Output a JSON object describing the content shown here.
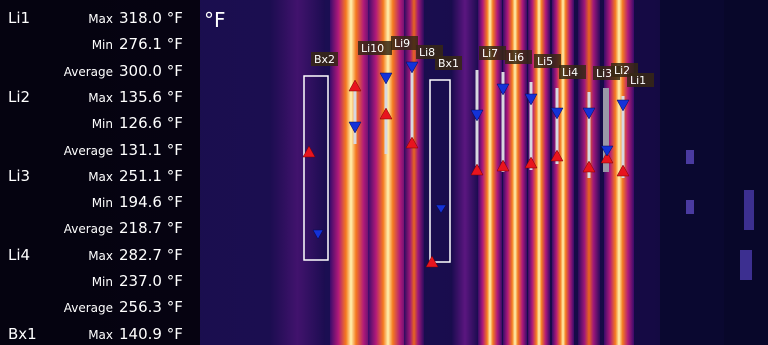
{
  "unit_label": "°F",
  "stats": [
    {
      "group": "Li1",
      "rows": [
        {
          "label": "Max",
          "value": "318.0 °F"
        },
        {
          "label": "Min",
          "value": "276.1 °F"
        },
        {
          "label": "Average",
          "value": "300.0 °F"
        }
      ]
    },
    {
      "group": "Li2",
      "rows": [
        {
          "label": "Max",
          "value": "135.6 °F"
        },
        {
          "label": "Min",
          "value": "126.6 °F"
        },
        {
          "label": "Average",
          "value": "131.1 °F"
        }
      ]
    },
    {
      "group": "Li3",
      "rows": [
        {
          "label": "Max",
          "value": "251.1 °F"
        },
        {
          "label": "Min",
          "value": "194.6 °F"
        },
        {
          "label": "Average",
          "value": "218.7 °F"
        }
      ]
    },
    {
      "group": "Li4",
      "rows": [
        {
          "label": "Max",
          "value": "282.7 °F"
        },
        {
          "label": "Min",
          "value": "237.0 °F"
        },
        {
          "label": "Average",
          "value": "256.3 °F"
        }
      ]
    },
    {
      "group": "Bx1",
      "rows": [
        {
          "label": "Max",
          "value": "140.9 °F"
        }
      ]
    }
  ],
  "markers": [
    "Bx2",
    "Li10",
    "Li9",
    "Li8",
    "Bx1",
    "Li7",
    "Li6",
    "Li5",
    "Li4",
    "Li3",
    "Li2",
    "Li1"
  ],
  "colors": {
    "hot_marker": "#e8141e",
    "cold_marker": "#1432d8",
    "panel_text": "#ffffff"
  }
}
